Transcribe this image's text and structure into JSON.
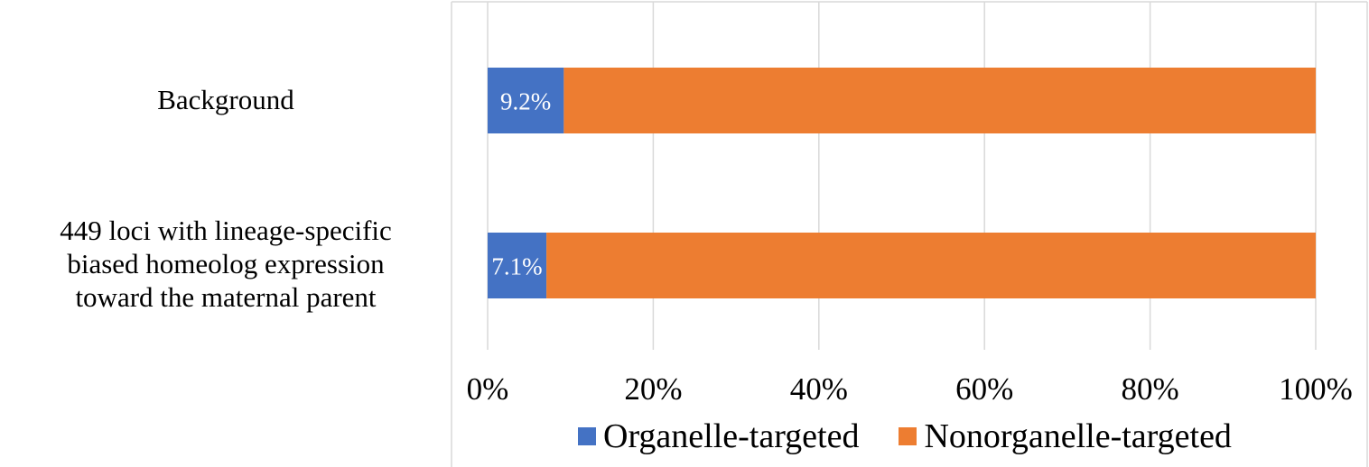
{
  "chart_data": {
    "type": "bar",
    "orientation": "horizontal",
    "stacked": true,
    "percent_scale": true,
    "categories": [
      [
        "Background"
      ],
      [
        "449 loci with lineage-specific",
        "biased homeolog expression",
        "toward the maternal parent"
      ]
    ],
    "series": [
      {
        "name": "Organelle-targeted",
        "color": "#4472c4",
        "values": [
          9.2,
          7.1
        ],
        "data_labels": [
          "9.2%",
          "7.1%"
        ]
      },
      {
        "name": "Nonorganelle-targeted",
        "color": "#ed7d31",
        "values": [
          90.8,
          92.9
        ]
      }
    ],
    "xlim": [
      0,
      100
    ],
    "xticks": [
      "0%",
      "20%",
      "40%",
      "60%",
      "80%",
      "100%"
    ],
    "grid": true,
    "legend_position": "bottom"
  }
}
